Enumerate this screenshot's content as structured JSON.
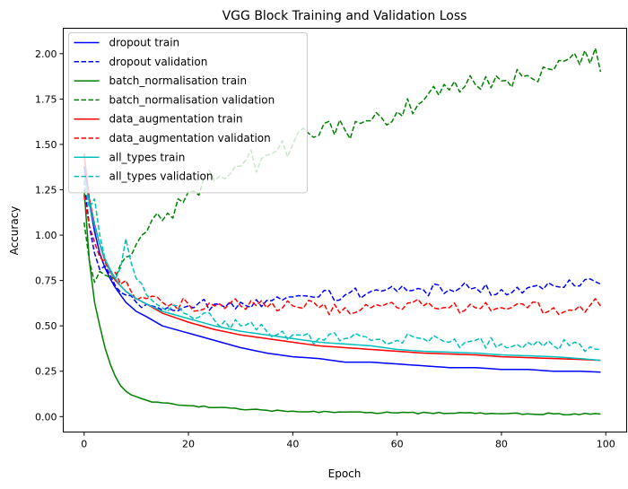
{
  "chart_data": {
    "type": "line",
    "title": "VGG Block Training and Validation Loss",
    "xlabel": "Epoch",
    "ylabel": "Accuracy",
    "xlim": [
      -4,
      104
    ],
    "ylim": [
      -0.085,
      2.14
    ],
    "xticks": [
      0,
      20,
      40,
      60,
      80,
      100
    ],
    "yticks": [
      0.0,
      0.25,
      0.5,
      0.75,
      1.0,
      1.25,
      1.5,
      1.75,
      2.0
    ],
    "ytick_labels": [
      "0.00",
      "0.25",
      "0.50",
      "0.75",
      "1.00",
      "1.25",
      "1.50",
      "1.75",
      "2.00"
    ],
    "grid": false,
    "legend_position": "upper-left",
    "colors": {
      "dropout": "#0000ff",
      "batch_normalisation": "#008000",
      "data_augmentation": "#ff0000",
      "all_types": "#00bfbf"
    },
    "series": [
      {
        "name": "dropout train",
        "color": "#0000ff",
        "style": "solid",
        "anchors": [
          [
            0,
            1.38
          ],
          [
            1,
            1.18
          ],
          [
            2,
            1.02
          ],
          [
            3,
            0.9
          ],
          [
            4,
            0.82
          ],
          [
            5,
            0.76
          ],
          [
            6,
            0.71
          ],
          [
            7,
            0.67
          ],
          [
            8,
            0.63
          ],
          [
            10,
            0.58
          ],
          [
            12,
            0.55
          ],
          [
            15,
            0.5
          ],
          [
            20,
            0.46
          ],
          [
            25,
            0.42
          ],
          [
            30,
            0.38
          ],
          [
            35,
            0.35
          ],
          [
            40,
            0.33
          ],
          [
            45,
            0.32
          ],
          [
            50,
            0.3
          ],
          [
            55,
            0.3
          ],
          [
            60,
            0.29
          ],
          [
            65,
            0.28
          ],
          [
            70,
            0.27
          ],
          [
            75,
            0.27
          ],
          [
            80,
            0.26
          ],
          [
            85,
            0.26
          ],
          [
            90,
            0.25
          ],
          [
            95,
            0.25
          ],
          [
            99,
            0.245
          ]
        ]
      },
      {
        "name": "dropout validation",
        "color": "#0000ff",
        "style": "dashed",
        "anchors": [
          [
            0,
            1.3
          ],
          [
            1,
            1.05
          ],
          [
            2,
            0.9
          ],
          [
            3,
            0.81
          ],
          [
            4,
            0.83
          ],
          [
            5,
            0.78
          ],
          [
            6,
            0.72
          ],
          [
            8,
            0.67
          ],
          [
            10,
            0.63
          ],
          [
            13,
            0.61
          ],
          [
            16,
            0.6
          ],
          [
            20,
            0.61
          ],
          [
            25,
            0.62
          ],
          [
            30,
            0.63
          ],
          [
            35,
            0.64
          ],
          [
            40,
            0.66
          ],
          [
            45,
            0.66
          ],
          [
            50,
            0.67
          ],
          [
            55,
            0.69
          ],
          [
            60,
            0.69
          ],
          [
            65,
            0.7
          ],
          [
            70,
            0.7
          ],
          [
            75,
            0.71
          ],
          [
            80,
            0.7
          ],
          [
            85,
            0.71
          ],
          [
            90,
            0.72
          ],
          [
            95,
            0.72
          ],
          [
            99,
            0.73
          ]
        ],
        "noise": 0.035
      },
      {
        "name": "batch_normalisation train",
        "color": "#008000",
        "style": "solid",
        "anchors": [
          [
            0,
            1.25
          ],
          [
            1,
            0.86
          ],
          [
            2,
            0.63
          ],
          [
            3,
            0.5
          ],
          [
            4,
            0.38
          ],
          [
            5,
            0.29
          ],
          [
            6,
            0.22
          ],
          [
            7,
            0.17
          ],
          [
            8,
            0.14
          ],
          [
            9,
            0.12
          ],
          [
            10,
            0.11
          ],
          [
            12,
            0.09
          ],
          [
            14,
            0.08
          ],
          [
            17,
            0.07
          ],
          [
            20,
            0.06
          ],
          [
            25,
            0.05
          ],
          [
            30,
            0.04
          ],
          [
            40,
            0.03
          ],
          [
            50,
            0.025
          ],
          [
            60,
            0.02
          ],
          [
            70,
            0.018
          ],
          [
            80,
            0.016
          ],
          [
            90,
            0.015
          ],
          [
            99,
            0.014
          ]
        ],
        "noise": 0.005
      },
      {
        "name": "batch_normalisation validation",
        "color": "#008000",
        "style": "dashed",
        "anchors": [
          [
            0,
            1.07
          ],
          [
            1,
            0.86
          ],
          [
            2,
            0.74
          ],
          [
            3,
            0.8
          ],
          [
            4,
            0.78
          ],
          [
            6,
            0.76
          ],
          [
            7,
            0.84
          ],
          [
            8,
            0.88
          ],
          [
            10,
            0.95
          ],
          [
            12,
            1.02
          ],
          [
            15,
            1.08
          ],
          [
            18,
            1.2
          ],
          [
            20,
            1.24
          ],
          [
            25,
            1.3
          ],
          [
            30,
            1.38
          ],
          [
            35,
            1.44
          ],
          [
            40,
            1.5
          ],
          [
            45,
            1.55
          ],
          [
            50,
            1.58
          ],
          [
            55,
            1.63
          ],
          [
            60,
            1.68
          ],
          [
            65,
            1.74
          ],
          [
            70,
            1.8
          ],
          [
            75,
            1.83
          ],
          [
            80,
            1.85
          ],
          [
            85,
            1.88
          ],
          [
            90,
            1.91
          ],
          [
            95,
            1.94
          ],
          [
            98,
            2.03
          ],
          [
            99,
            1.9
          ]
        ],
        "noise": 0.07
      },
      {
        "name": "data_augmentation train",
        "color": "#ff0000",
        "style": "solid",
        "anchors": [
          [
            0,
            1.45
          ],
          [
            1,
            1.2
          ],
          [
            2,
            1.06
          ],
          [
            3,
            0.95
          ],
          [
            4,
            0.86
          ],
          [
            5,
            0.8
          ],
          [
            6,
            0.75
          ],
          [
            7,
            0.72
          ],
          [
            8,
            0.69
          ],
          [
            10,
            0.65
          ],
          [
            12,
            0.62
          ],
          [
            15,
            0.57
          ],
          [
            20,
            0.52
          ],
          [
            25,
            0.48
          ],
          [
            30,
            0.45
          ],
          [
            35,
            0.43
          ],
          [
            40,
            0.41
          ],
          [
            45,
            0.39
          ],
          [
            50,
            0.38
          ],
          [
            55,
            0.37
          ],
          [
            60,
            0.36
          ],
          [
            65,
            0.35
          ],
          [
            70,
            0.345
          ],
          [
            75,
            0.34
          ],
          [
            80,
            0.33
          ],
          [
            85,
            0.325
          ],
          [
            90,
            0.32
          ],
          [
            95,
            0.315
          ],
          [
            99,
            0.31
          ]
        ]
      },
      {
        "name": "data_augmentation validation",
        "color": "#ff0000",
        "style": "dashed",
        "anchors": [
          [
            0,
            1.22
          ],
          [
            1,
            1.05
          ],
          [
            2,
            0.96
          ],
          [
            3,
            0.88
          ],
          [
            5,
            0.8
          ],
          [
            7,
            0.73
          ],
          [
            9,
            0.69
          ],
          [
            12,
            0.65
          ],
          [
            15,
            0.63
          ],
          [
            20,
            0.62
          ],
          [
            25,
            0.61
          ],
          [
            30,
            0.61
          ],
          [
            35,
            0.6
          ],
          [
            40,
            0.61
          ],
          [
            45,
            0.6
          ],
          [
            50,
            0.6
          ],
          [
            55,
            0.6
          ],
          [
            60,
            0.6
          ],
          [
            65,
            0.61
          ],
          [
            70,
            0.6
          ],
          [
            75,
            0.6
          ],
          [
            80,
            0.6
          ],
          [
            85,
            0.6
          ],
          [
            90,
            0.6
          ],
          [
            95,
            0.61
          ],
          [
            99,
            0.61
          ]
        ],
        "noise": 0.04
      },
      {
        "name": "all_types train",
        "color": "#00bfbf",
        "style": "solid",
        "anchors": [
          [
            0,
            1.33
          ],
          [
            1,
            1.18
          ],
          [
            2,
            1.05
          ],
          [
            3,
            0.95
          ],
          [
            4,
            0.87
          ],
          [
            5,
            0.81
          ],
          [
            6,
            0.76
          ],
          [
            7,
            0.72
          ],
          [
            8,
            0.69
          ],
          [
            10,
            0.65
          ],
          [
            12,
            0.62
          ],
          [
            15,
            0.58
          ],
          [
            20,
            0.54
          ],
          [
            25,
            0.5
          ],
          [
            30,
            0.47
          ],
          [
            35,
            0.45
          ],
          [
            40,
            0.43
          ],
          [
            45,
            0.41
          ],
          [
            50,
            0.4
          ],
          [
            55,
            0.39
          ],
          [
            60,
            0.37
          ],
          [
            65,
            0.36
          ],
          [
            70,
            0.355
          ],
          [
            75,
            0.35
          ],
          [
            80,
            0.34
          ],
          [
            85,
            0.335
          ],
          [
            90,
            0.33
          ],
          [
            95,
            0.32
          ],
          [
            99,
            0.31
          ]
        ]
      },
      {
        "name": "all_types validation",
        "color": "#00bfbf",
        "style": "dashed",
        "anchors": [
          [
            0,
            1.3
          ],
          [
            1,
            1.15
          ],
          [
            2,
            1.2
          ],
          [
            3,
            1.0
          ],
          [
            4,
            0.87
          ],
          [
            5,
            0.8
          ],
          [
            6,
            0.76
          ],
          [
            7,
            0.82
          ],
          [
            8,
            0.98
          ],
          [
            9,
            0.85
          ],
          [
            10,
            0.76
          ],
          [
            12,
            0.67
          ],
          [
            15,
            0.6
          ],
          [
            20,
            0.56
          ],
          [
            25,
            0.53
          ],
          [
            30,
            0.5
          ],
          [
            35,
            0.47
          ],
          [
            40,
            0.45
          ],
          [
            45,
            0.43
          ],
          [
            50,
            0.43
          ],
          [
            55,
            0.42
          ],
          [
            60,
            0.42
          ],
          [
            65,
            0.43
          ],
          [
            70,
            0.41
          ],
          [
            75,
            0.42
          ],
          [
            80,
            0.4
          ],
          [
            85,
            0.41
          ],
          [
            90,
            0.39
          ],
          [
            95,
            0.4
          ],
          [
            99,
            0.37
          ]
        ],
        "noise": 0.035
      }
    ]
  }
}
